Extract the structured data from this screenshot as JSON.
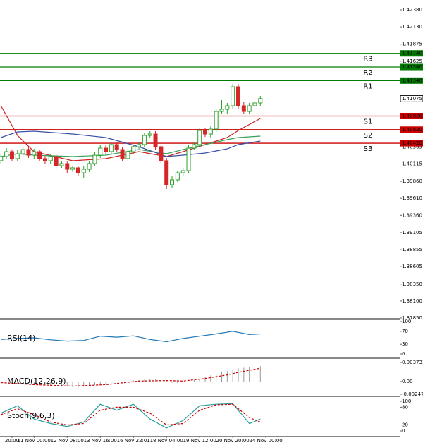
{
  "chart_data": [
    {
      "type": "candlestick",
      "categories": [
        null,
        null,
        "20:00",
        null,
        null,
        null,
        "11 Nov 00:00",
        null,
        null,
        null,
        null,
        null,
        "12 Nov 08:00",
        null,
        null,
        null,
        null,
        null,
        "13 Nov 16:00",
        null,
        null,
        null,
        null,
        null,
        "16 Nov 22:01",
        null,
        null,
        null,
        null,
        null,
        "18 Nov 04:00",
        null,
        null,
        null,
        null,
        null,
        "19 Nov 12:00",
        null,
        null,
        null,
        null,
        null,
        "20 Nov 20:00",
        null,
        null,
        null,
        null,
        null,
        "24 Nov 00:00"
      ],
      "open": [
        1.40162,
        1.40224,
        1.40296,
        1.40193,
        1.40265,
        1.40327,
        1.40244,
        1.40296,
        1.40193,
        1.40162,
        1.40224,
        1.40089,
        1.4012,
        1.40037,
        1.40058,
        1.39985,
        1.40037,
        1.4012,
        1.40244,
        1.40348,
        1.40296,
        1.404,
        1.40327,
        1.40193,
        1.40296,
        1.40369,
        1.404,
        1.40535,
        1.40555,
        1.40369,
        1.40162,
        1.39809,
        1.39882,
        1.39985,
        1.40016,
        1.40348,
        1.404,
        1.40607,
        1.40555,
        1.40628,
        1.40887,
        1.40918,
        1.4097,
        1.4125,
        1.4097,
        1.40887,
        1.4097,
        1.41012,
        null
      ],
      "high": [
        1.40265,
        1.40348,
        1.40327,
        1.40317,
        1.40369,
        1.40359,
        1.40338,
        1.40327,
        1.40234,
        1.40265,
        1.40255,
        1.40162,
        1.40162,
        1.40089,
        1.40089,
        1.40079,
        1.40151,
        1.40286,
        1.4039,
        1.404,
        1.40441,
        1.40441,
        1.40359,
        1.40338,
        1.404,
        1.40441,
        1.40576,
        1.40597,
        1.40597,
        1.404,
        1.40203,
        1.39944,
        1.40016,
        1.40058,
        1.4039,
        1.40441,
        1.40649,
        1.40649,
        1.40669,
        1.40929,
        1.41053,
        1.41012,
        1.41291,
        1.41291,
        1.41032,
        1.41012,
        1.41053,
        1.41115,
        null
      ],
      "low": [
        1.4012,
        1.40182,
        1.40151,
        1.40162,
        1.40224,
        1.40203,
        1.40193,
        1.40151,
        1.4012,
        1.4012,
        1.40048,
        1.40058,
        1.39985,
        1.39996,
        1.39944,
        1.39913,
        1.39996,
        1.40089,
        1.40203,
        1.40255,
        1.40265,
        1.40286,
        1.40151,
        1.40151,
        1.40255,
        1.40338,
        1.40359,
        1.40493,
        1.40327,
        1.4012,
        1.39747,
        1.39768,
        1.39851,
        1.39944,
        1.39975,
        1.40317,
        1.40359,
        1.40514,
        1.40493,
        1.40587,
        1.40846,
        1.40846,
        1.40918,
        1.40918,
        1.40846,
        1.40846,
        1.40918,
        1.4097,
        null
      ],
      "close": [
        1.40224,
        1.40296,
        1.40193,
        1.40265,
        1.40327,
        1.40244,
        1.40296,
        1.40193,
        1.40162,
        1.40224,
        1.40089,
        1.4012,
        1.40037,
        1.40058,
        1.39985,
        1.40037,
        1.4012,
        1.40244,
        1.40348,
        1.40296,
        1.404,
        1.40327,
        1.40193,
        1.40296,
        1.40369,
        1.404,
        1.40535,
        1.40555,
        1.40369,
        1.40162,
        1.39809,
        1.39882,
        1.39985,
        1.40016,
        1.40348,
        1.404,
        1.40607,
        1.40555,
        1.40628,
        1.40887,
        1.40918,
        1.4097,
        1.4125,
        1.4097,
        1.40887,
        1.4097,
        1.41012,
        1.41075,
        null
      ],
      "up_color": "#2ca02c",
      "down_color": "#d62728",
      "ylim": [
        1.3785,
        1.42525
      ],
      "yticks": [
        {
          "value": 1.4238,
          "label": "1.42380"
        },
        {
          "value": 1.4213,
          "label": "1.42130"
        },
        1.41875,
        1.41625,
        1.40365,
        1.40115,
        {
          "value": 1.3986,
          "label": "1.39860"
        },
        {
          "value": 1.3961,
          "label": "1.39610"
        },
        {
          "value": 1.3936,
          "label": "1.39360"
        },
        1.39105,
        1.38855,
        1.38605,
        {
          "value": 1.3835,
          "label": "1.38350"
        },
        {
          "value": 1.381,
          "label": "1.38100"
        },
        {
          "value": 1.3785,
          "label": "1.37850"
        }
      ],
      "levels": {
        "names": [
          "R3",
          "R2",
          "R1",
          "S1",
          "S2",
          "S3"
        ],
        "values": [
          1.4174,
          1.4154,
          1.4134,
          1.4082,
          1.4062,
          1.4042
        ],
        "value_labels": [
          "1.41740",
          "1.41540",
          "1.41340",
          "1.40820",
          "1.40620",
          "1.40420"
        ],
        "colors": [
          "#007a00",
          "#007a00",
          "#007a00",
          "#cc0000",
          "#cc0000",
          "#cc0000"
        ]
      },
      "current_price": 1.41075,
      "moving_averages": [
        {
          "color": "#cc2222",
          "x": [
            0,
            3,
            6,
            13,
            19,
            25,
            30,
            33,
            37,
            41,
            43,
            47
          ],
          "values": [
            1.4097,
            1.40535,
            1.40296,
            1.40162,
            1.40193,
            1.40296,
            1.40224,
            1.40296,
            1.404,
            1.40504,
            1.40607,
            1.40784
          ]
        },
        {
          "color": "#3aa05a",
          "x": [
            0,
            3,
            6,
            13,
            19,
            25,
            30,
            33,
            37,
            41,
            43,
            47
          ],
          "values": [
            1.40224,
            1.40265,
            1.40244,
            1.40224,
            1.40244,
            1.40327,
            1.40265,
            1.40327,
            1.404,
            1.40473,
            1.40504,
            1.40524
          ]
        },
        {
          "color": "#3a4fa8",
          "x": [
            0,
            3,
            6,
            13,
            19,
            25,
            30,
            33,
            37,
            41,
            43,
            47
          ],
          "values": [
            1.40504,
            1.40587,
            1.40597,
            1.40555,
            1.40504,
            1.40369,
            1.40224,
            1.40244,
            1.40276,
            1.40338,
            1.404,
            1.40452
          ]
        }
      ]
    },
    {
      "type": "line",
      "title": "RSI(14)",
      "ylim": [
        0,
        100
      ],
      "yticks": [
        0,
        30,
        70,
        100
      ],
      "series": [
        {
          "color": "#1f77b4",
          "x": [
            0,
            3,
            6,
            9,
            12,
            15,
            18,
            21,
            24,
            27,
            30,
            33,
            36,
            39,
            42,
            45,
            47
          ],
          "values": [
            45,
            48,
            50,
            44,
            40,
            42,
            55,
            52,
            56,
            45,
            38,
            48,
            55,
            62,
            70,
            60,
            62
          ]
        }
      ]
    },
    {
      "type": "macd",
      "title": "MACD(12,26,9)",
      "ylim": [
        -0.0029,
        0.00456
      ],
      "yticks": [
        -0.002473,
        {
          "value": 0,
          "label": "0.00"
        },
        0.003731
      ],
      "histogram": [
        -0.0003,
        -0.0004,
        -0.0004,
        -0.0005,
        -0.0005,
        -0.0006,
        -0.0006,
        -0.0007,
        -0.0008,
        -0.0008,
        -0.0009,
        -0.001,
        -0.001,
        -0.0011,
        -0.0011,
        -0.001,
        -0.0009,
        -0.0007,
        -0.0005,
        -0.0004,
        -0.0002,
        -0.0001,
        0,
        0.0001,
        0.0002,
        0.0003,
        0.0004,
        0.0004,
        0.0004,
        0.0003,
        0.0001,
        -0.0002,
        -0.0003,
        -0.0002,
        0,
        0.0003,
        0.0006,
        0.0009,
        0.0012,
        0.0015,
        0.0018,
        0.002,
        0.0023,
        0.0026,
        0.0027,
        0.0028,
        0.0029,
        0.003,
        null
      ],
      "histogram_color": "#999999",
      "signal": {
        "color": "#cc0000",
        "x": [
          0,
          3,
          6,
          13,
          19,
          25,
          30,
          33,
          37,
          41,
          43,
          47
        ],
        "values": [
          -0.0002,
          -0.0004,
          -0.0006,
          -0.0009,
          -0.0006,
          0.0001,
          0.0002,
          0.0001,
          0.0006,
          0.0013,
          0.0018,
          0.0026
        ]
      }
    },
    {
      "type": "line",
      "title": "Stoch(9,6,3)",
      "ylim": [
        0,
        100
      ],
      "yticks": [
        0,
        20,
        80,
        100
      ],
      "series": [
        {
          "color": "#2a9d9d",
          "x": [
            0,
            3,
            6,
            9,
            12,
            15,
            18,
            21,
            24,
            27,
            30,
            33,
            36,
            39,
            42,
            45,
            47
          ],
          "values": [
            60,
            85,
            40,
            25,
            15,
            30,
            90,
            70,
            90,
            40,
            10,
            35,
            85,
            90,
            92,
            25,
            40
          ]
        },
        {
          "color": "#cc0000",
          "dashed": true,
          "x": [
            0,
            3,
            6,
            9,
            12,
            15,
            18,
            21,
            24,
            27,
            30,
            33,
            36,
            39,
            42,
            45,
            47
          ],
          "values": [
            55,
            75,
            55,
            30,
            20,
            25,
            70,
            80,
            80,
            60,
            20,
            25,
            70,
            88,
            90,
            45,
            30
          ]
        }
      ]
    }
  ]
}
